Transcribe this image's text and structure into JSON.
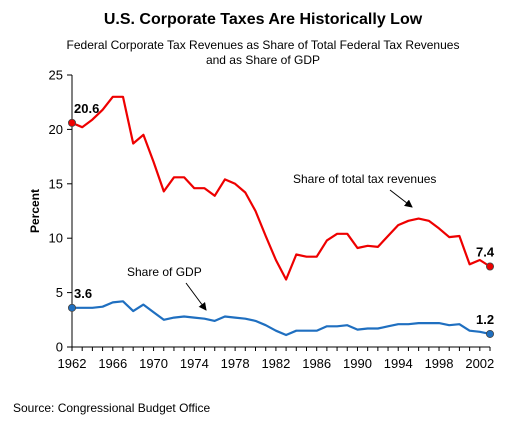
{
  "title": "U.S. Corporate Taxes Are Historically Low",
  "subtitle_line1": "Federal Corporate Tax Revenues as Share of Total Federal Tax Revenues",
  "subtitle_line2": "and as Share of GDP",
  "source": "Source: Congressional Budget Office",
  "chart_data": {
    "type": "line",
    "ylabel": "Percent",
    "xlabel": "",
    "xlim": [
      1962,
      2003
    ],
    "ylim": [
      0,
      25
    ],
    "x_ticks": [
      1962,
      1966,
      1970,
      1974,
      1978,
      1982,
      1986,
      1990,
      1994,
      1998,
      2002
    ],
    "y_ticks": [
      0,
      5,
      10,
      15,
      20,
      25
    ],
    "grid": false,
    "legend": "none",
    "x": [
      1962,
      1963,
      1964,
      1965,
      1966,
      1967,
      1968,
      1969,
      1970,
      1971,
      1972,
      1973,
      1974,
      1975,
      1976,
      1977,
      1978,
      1979,
      1980,
      1981,
      1982,
      1983,
      1984,
      1985,
      1986,
      1987,
      1988,
      1989,
      1990,
      1991,
      1992,
      1993,
      1994,
      1995,
      1996,
      1997,
      1998,
      1999,
      2000,
      2001,
      2002,
      2003
    ],
    "series": [
      {
        "name": "Share of total tax revenues",
        "color": "#ee0000",
        "values": [
          20.6,
          20.2,
          20.9,
          21.8,
          23.0,
          23.0,
          18.7,
          19.5,
          17.0,
          14.3,
          15.6,
          15.6,
          14.6,
          14.6,
          13.9,
          15.4,
          15.0,
          14.2,
          12.5,
          10.2,
          8.0,
          6.2,
          8.5,
          8.3,
          8.3,
          9.8,
          10.4,
          10.4,
          9.1,
          9.3,
          9.2,
          10.2,
          11.2,
          11.6,
          11.8,
          11.6,
          10.9,
          10.1,
          10.2,
          7.6,
          8.0,
          7.4
        ]
      },
      {
        "name": "Share of GDP",
        "color": "#1f6fc0",
        "values": [
          3.6,
          3.6,
          3.6,
          3.7,
          4.1,
          4.2,
          3.3,
          3.9,
          3.2,
          2.5,
          2.7,
          2.8,
          2.7,
          2.6,
          2.4,
          2.8,
          2.7,
          2.6,
          2.4,
          2.0,
          1.5,
          1.1,
          1.5,
          1.5,
          1.5,
          1.9,
          1.9,
          2.0,
          1.6,
          1.7,
          1.7,
          1.9,
          2.1,
          2.1,
          2.2,
          2.2,
          2.2,
          2.0,
          2.1,
          1.5,
          1.4,
          1.2
        ]
      }
    ],
    "annotations": [
      {
        "text": "Share of total tax revenues",
        "series": 0
      },
      {
        "text": "Share of GDP",
        "series": 1
      }
    ],
    "endpoint_labels": [
      {
        "series": 0,
        "x": 1962,
        "text": "20.6"
      },
      {
        "series": 0,
        "x": 2003,
        "text": "7.4"
      },
      {
        "series": 1,
        "x": 1962,
        "text": "3.6"
      },
      {
        "series": 1,
        "x": 2003,
        "text": "1.2"
      }
    ]
  }
}
